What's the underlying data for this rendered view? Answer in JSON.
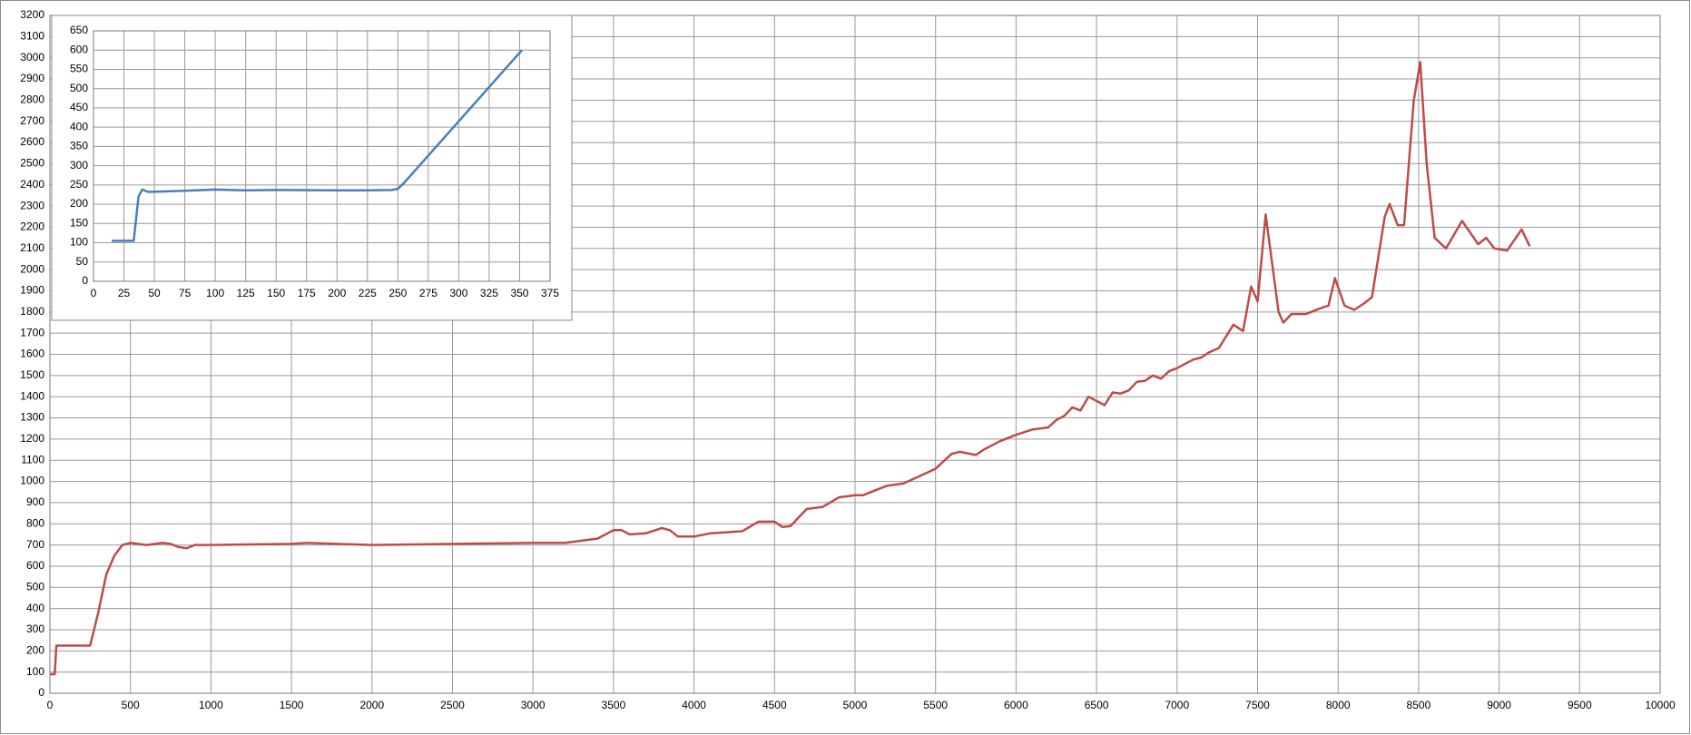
{
  "chart_data": [
    {
      "type": "line",
      "color": "#be4b48",
      "x": [
        0,
        30,
        40,
        100,
        250,
        300,
        350,
        400,
        450,
        500,
        600,
        700,
        750,
        800,
        850,
        900,
        1000,
        1500,
        1600,
        2000,
        2500,
        3000,
        3200,
        3300,
        3400,
        3500,
        3550,
        3600,
        3700,
        3800,
        3850,
        3900,
        4000,
        4100,
        4200,
        4300,
        4400,
        4500,
        4550,
        4600,
        4700,
        4800,
        4900,
        5000,
        5050,
        5100,
        5200,
        5300,
        5400,
        5500,
        5600,
        5650,
        5750,
        5800,
        5900,
        6000,
        6100,
        6200,
        6250,
        6300,
        6350,
        6400,
        6450,
        6550,
        6600,
        6650,
        6700,
        6750,
        6800,
        6850,
        6900,
        6950,
        7000,
        7100,
        7150,
        7200,
        7260,
        7350,
        7410,
        7460,
        7500,
        7550,
        7630,
        7660,
        7710,
        7800,
        7900,
        7940,
        7980,
        8040,
        8100,
        8160,
        8210,
        8290,
        8320,
        8370,
        8410,
        8470,
        8510,
        8550,
        8600,
        8670,
        8770,
        8870,
        8920,
        8970,
        9050,
        9140,
        9190
      ],
      "values": [
        90,
        90,
        225,
        225,
        225,
        380,
        560,
        650,
        700,
        710,
        700,
        710,
        705,
        690,
        685,
        700,
        700,
        705,
        710,
        700,
        705,
        710,
        710,
        720,
        730,
        770,
        770,
        750,
        755,
        780,
        770,
        740,
        740,
        755,
        760,
        765,
        810,
        810,
        785,
        790,
        870,
        880,
        925,
        935,
        935,
        950,
        980,
        990,
        1025,
        1060,
        1130,
        1140,
        1125,
        1150,
        1190,
        1220,
        1245,
        1255,
        1290,
        1310,
        1350,
        1335,
        1400,
        1360,
        1420,
        1415,
        1430,
        1470,
        1475,
        1500,
        1485,
        1520,
        1535,
        1575,
        1585,
        1610,
        1630,
        1740,
        1710,
        1920,
        1850,
        2260,
        1800,
        1750,
        1790,
        1790,
        1820,
        1830,
        1960,
        1830,
        1810,
        1840,
        1870,
        2250,
        2310,
        2210,
        2210,
        2800,
        2980,
        2500,
        2150,
        2100,
        2230,
        2120,
        2150,
        2100,
        2090,
        2190,
        2110
      ],
      "xlim": [
        0,
        10000
      ],
      "ylim": [
        0,
        3200
      ],
      "xticks": [
        0,
        500,
        1000,
        1500,
        2000,
        2500,
        3000,
        3500,
        4000,
        4500,
        5000,
        5500,
        6000,
        6500,
        7000,
        7500,
        8000,
        8500,
        9000,
        9500,
        10000
      ],
      "yticks": [
        0,
        100,
        200,
        300,
        400,
        500,
        600,
        700,
        800,
        900,
        1000,
        1100,
        1200,
        1300,
        1400,
        1500,
        1600,
        1700,
        1800,
        1900,
        2000,
        2100,
        2200,
        2300,
        2400,
        2500,
        2600,
        2700,
        2800,
        2900,
        3000,
        3100,
        3200
      ],
      "grid": true
    },
    {
      "type": "line",
      "color": "#4a7ebb",
      "x": [
        15,
        33,
        37,
        40,
        45,
        75,
        100,
        125,
        150,
        200,
        225,
        245,
        250,
        255,
        352
      ],
      "values": [
        105,
        105,
        220,
        238,
        232,
        235,
        238,
        236,
        237,
        236,
        236,
        237,
        240,
        255,
        600
      ],
      "xlim": [
        0,
        375
      ],
      "ylim": [
        0,
        650
      ],
      "xticks": [
        0,
        25,
        50,
        75,
        100,
        125,
        150,
        175,
        200,
        225,
        250,
        275,
        300,
        325,
        350,
        375
      ],
      "yticks": [
        0,
        50,
        100,
        150,
        200,
        250,
        300,
        350,
        400,
        450,
        500,
        550,
        600,
        650
      ],
      "grid": true
    }
  ]
}
